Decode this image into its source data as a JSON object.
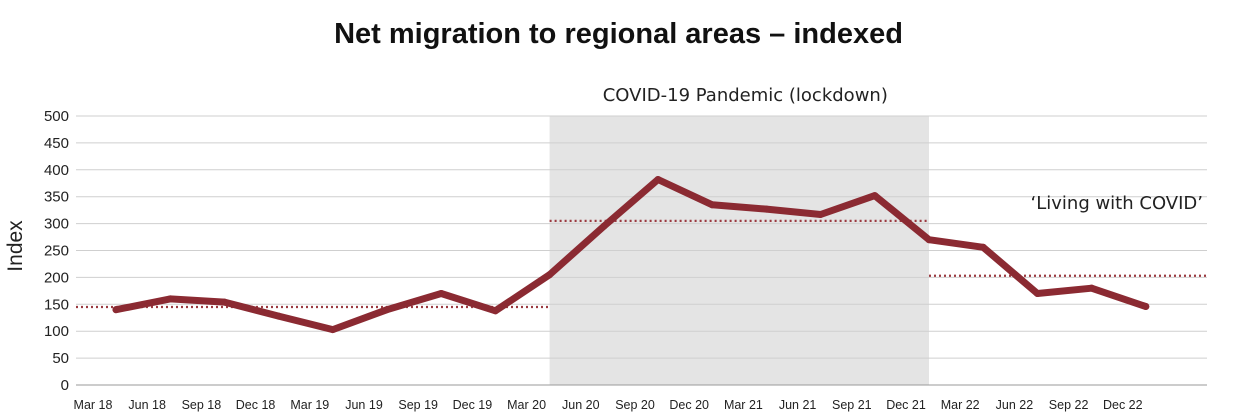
{
  "chart_data": {
    "type": "line",
    "title": "Net migration to regional areas – indexed",
    "ylabel": "Index",
    "xlabel": "",
    "ylim": [
      0,
      500
    ],
    "yticks": [
      0,
      50,
      100,
      150,
      200,
      250,
      300,
      350,
      400,
      450,
      500
    ],
    "grid": true,
    "categories": [
      "Mar 18",
      "Jun 18",
      "Sep 18",
      "Dec 18",
      "Mar 19",
      "Jun 19",
      "Sep 19",
      "Dec 19",
      "Mar 20",
      "Jun 20",
      "Sep 20",
      "Dec 20",
      "Mar 21",
      "Jun 21",
      "Sep 21",
      "Dec 21",
      "Mar 22",
      "Jun 22",
      "Sep 22",
      "Dec 22"
    ],
    "series": [
      {
        "values": [
          140,
          160,
          154,
          128,
          103,
          140,
          170,
          138,
          205,
          295,
          382,
          335,
          327,
          317,
          352,
          270,
          256,
          170,
          180,
          146
        ],
        "color": "#8b2a32"
      }
    ],
    "shaded_region": {
      "start": "Mar 20",
      "end": "Dec 21",
      "label": "COVID-19 Pandemic (lockdown)",
      "color": "#e4e4e4"
    },
    "reference_lines": [
      {
        "start": "Mar 18",
        "end": "Mar 20",
        "value": 145
      },
      {
        "start": "Mar 20",
        "end": "Dec 21",
        "value": 305
      },
      {
        "start": "Dec 21",
        "end": "Dec 22",
        "value": 203,
        "label": "‘Living with COVID’"
      }
    ],
    "reference_line_color": "#9b3a40"
  }
}
